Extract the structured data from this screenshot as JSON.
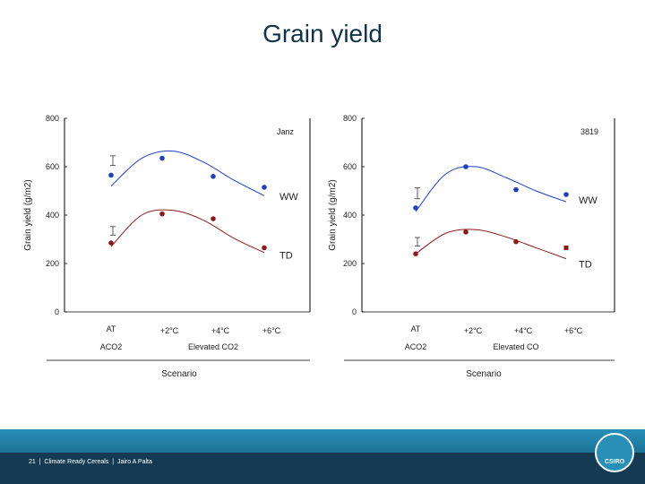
{
  "slide": {
    "title": "Grain yield",
    "footer": "21  |  Climate Ready Cereals  |  Jairo A Palta",
    "logo_text": "CSIRO"
  },
  "chart_data": [
    {
      "type": "line",
      "panel_label": "Janz",
      "ylabel": "Grain yield (g/m2)",
      "xlabel": "Scenario",
      "y_ticks": [
        0,
        200,
        400,
        600,
        800
      ],
      "ylim": [
        0,
        800
      ],
      "categories": [
        "AT",
        "+2°C",
        "+4°C",
        "+6°C"
      ],
      "groups": [
        {
          "label": "ACO2",
          "start": 0,
          "end": 0
        },
        {
          "label": "Elevated CO2",
          "start": 1,
          "end": 3
        }
      ],
      "series": [
        {
          "name": "WW",
          "color": "#1f3fbf",
          "points": [
            565,
            635,
            560,
            515
          ],
          "fit": [
            520,
            635,
            665,
            620,
            545,
            480
          ],
          "error": 40
        },
        {
          "name": "TD",
          "color": "#8b1a1a",
          "points": [
            285,
            405,
            385,
            265
          ],
          "fit": [
            270,
            400,
            420,
            380,
            305,
            245
          ],
          "error": 35
        }
      ]
    },
    {
      "type": "line",
      "panel_label": "3819",
      "ylabel": "Grain yield (g/m2)",
      "xlabel": "Scenario",
      "y_ticks": [
        0,
        200,
        400,
        600,
        800
      ],
      "ylim": [
        0,
        800
      ],
      "categories": [
        "AT",
        "+2°C",
        "+4°C",
        "+6°C"
      ],
      "groups": [
        {
          "label": "ACO2",
          "start": 0,
          "end": 0
        },
        {
          "label": "Elevated CO",
          "start": 1,
          "end": 3
        }
      ],
      "series": [
        {
          "name": "WW",
          "color": "#1f3fbf",
          "points": [
            430,
            600,
            505,
            485
          ],
          "fit": [
            415,
            570,
            600,
            555,
            500,
            455
          ],
          "error": 45
        },
        {
          "name": "TD",
          "color": "#8b1a1a",
          "points": [
            240,
            330,
            290,
            265
          ],
          "fit": [
            240,
            325,
            340,
            310,
            265,
            220
          ],
          "error": 35
        }
      ]
    }
  ]
}
